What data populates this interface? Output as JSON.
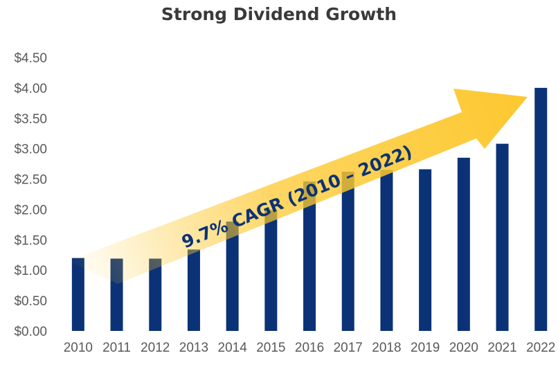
{
  "chart_data": {
    "type": "bar",
    "title": "Strong Dividend Growth",
    "categories": [
      "2010",
      "2011",
      "2012",
      "2013",
      "2014",
      "2015",
      "2016",
      "2017",
      "2018",
      "2019",
      "2020",
      "2021",
      "2022"
    ],
    "values": [
      1.2,
      1.19,
      1.19,
      1.34,
      1.8,
      1.99,
      2.46,
      2.62,
      2.65,
      2.66,
      2.85,
      3.08,
      4.0
    ],
    "ylim": [
      0,
      4.5
    ],
    "yticks": [
      "$0.00",
      "$0.50",
      "$1.00",
      "$1.50",
      "$2.00",
      "$2.50",
      "$3.00",
      "$3.50",
      "$4.00",
      "$4.50"
    ],
    "grid": false,
    "annotation": "9.7% CAGR (2010 – 2022)",
    "colors": {
      "bar": "#0b3276",
      "arrow": "#fdc82f",
      "annotation_text": "#0b3276",
      "axis_text": "#595959"
    }
  }
}
